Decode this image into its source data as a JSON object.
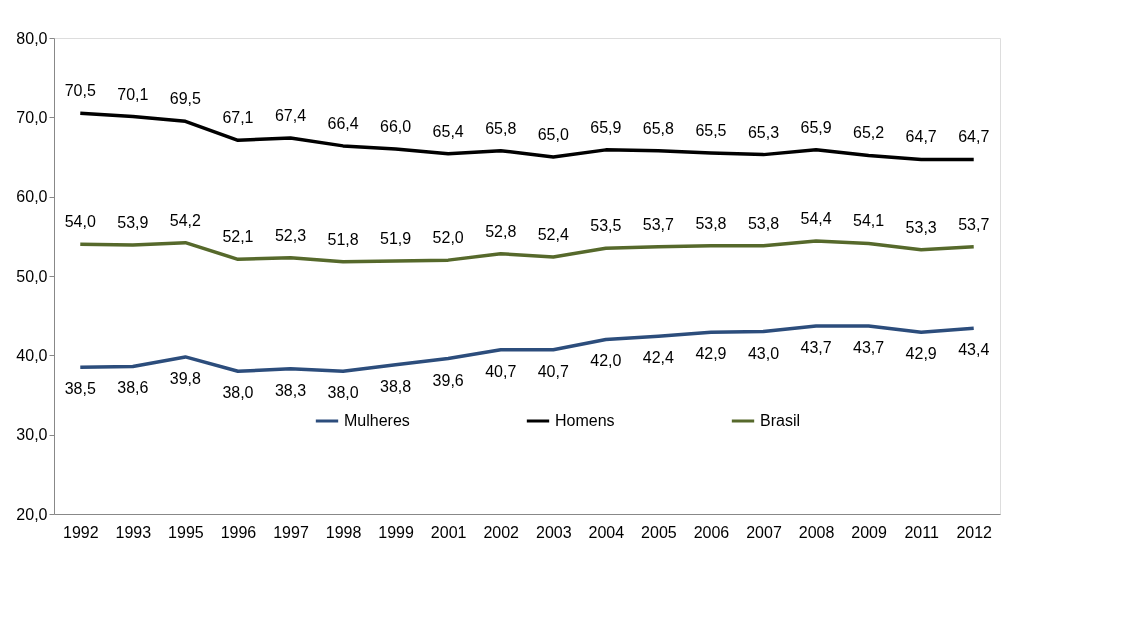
{
  "chart_data": {
    "type": "line",
    "categories": [
      "1992",
      "1993",
      "1995",
      "1996",
      "1997",
      "1998",
      "1999",
      "2001",
      "2002",
      "2003",
      "2004",
      "2005",
      "2006",
      "2007",
      "2008",
      "2009",
      "2011",
      "2012"
    ],
    "series": [
      {
        "name": "Mulheres",
        "color": "#2c4d7c",
        "values": [
          38.5,
          38.6,
          39.8,
          38.0,
          38.3,
          38.0,
          38.8,
          39.6,
          40.7,
          40.7,
          42.0,
          42.4,
          42.9,
          43.0,
          43.7,
          43.7,
          42.9,
          43.4
        ],
        "value_labels": [
          "38,5",
          "38,6",
          "39,8",
          "38,0",
          "38,3",
          "38,0",
          "38,8",
          "39,6",
          "40,7",
          "40,7",
          "42,0",
          "42,4",
          "42,9",
          "43,0",
          "43,7",
          "43,7",
          "42,9",
          "43,4"
        ]
      },
      {
        "name": "Homens",
        "color": "#000000",
        "values": [
          70.5,
          70.1,
          69.5,
          67.1,
          67.4,
          66.4,
          66.0,
          65.4,
          65.8,
          65.0,
          65.9,
          65.8,
          65.5,
          65.3,
          65.9,
          65.2,
          64.7,
          64.7
        ],
        "value_labels": [
          "70,5",
          "70,1",
          "69,5",
          "67,1",
          "67,4",
          "66,4",
          "66,0",
          "65,4",
          "65,8",
          "65,0",
          "65,9",
          "65,8",
          "65,5",
          "65,3",
          "65,9",
          "65,2",
          "64,7",
          "64,7"
        ]
      },
      {
        "name": "Brasil",
        "color": "#56692b",
        "values": [
          54.0,
          53.9,
          54.2,
          52.1,
          52.3,
          51.8,
          51.9,
          52.0,
          52.8,
          52.4,
          53.5,
          53.7,
          53.8,
          53.8,
          54.4,
          54.1,
          53.3,
          53.7
        ],
        "value_labels": [
          "54,0",
          "53,9",
          "54,2",
          "52,1",
          "52,3",
          "51,8",
          "51,9",
          "52,0",
          "52,8",
          "52,4",
          "53,5",
          "53,7",
          "53,8",
          "53,8",
          "54,4",
          "54,1",
          "53,3",
          "53,7"
        ]
      }
    ],
    "ylim": [
      20,
      80
    ],
    "yticks": [
      {
        "value": 20,
        "label": "20,0"
      },
      {
        "value": 30,
        "label": "30,0"
      },
      {
        "value": 40,
        "label": "40,0"
      },
      {
        "value": 50,
        "label": "50,0"
      },
      {
        "value": 60,
        "label": "60,0"
      },
      {
        "value": 70,
        "label": "70,0"
      },
      {
        "value": 80,
        "label": "80,0"
      }
    ],
    "grid": false,
    "legend": "bottom",
    "marker": "none",
    "line_style": "solid"
  }
}
